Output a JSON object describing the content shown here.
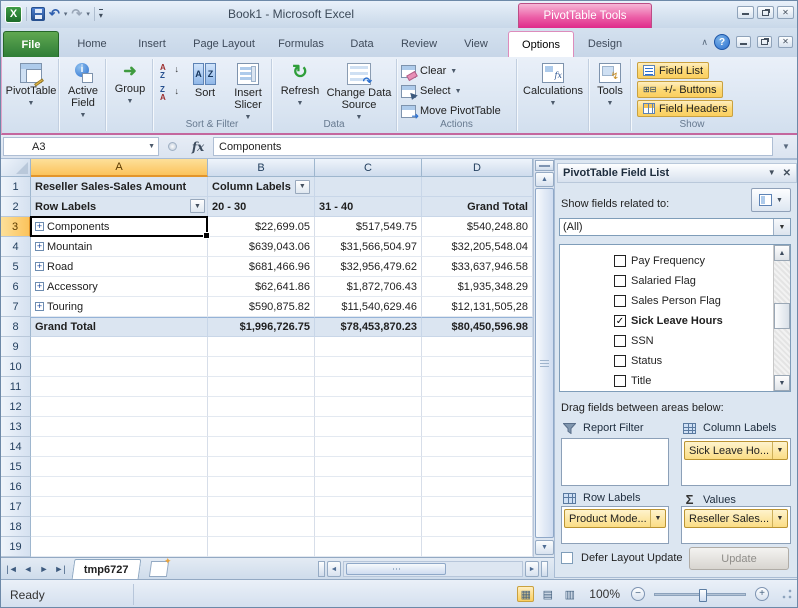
{
  "title_bar": {
    "title": "Book1  -  Microsoft Excel",
    "contextual_group": "PivotTable Tools"
  },
  "tabs": {
    "items": [
      "File",
      "Home",
      "Insert",
      "Page Layout",
      "Formulas",
      "Data",
      "Review",
      "View",
      "Options",
      "Design"
    ],
    "active": "Options"
  },
  "ribbon": {
    "pivottable": "PivotTable",
    "active_field": "Active Field",
    "group_btn": "Group",
    "sort": "Sort",
    "insert_slicer": "Insert Slicer",
    "sort_filter_group": "Sort & Filter",
    "refresh": "Refresh",
    "change_data_source": "Change Data Source",
    "data_group": "Data",
    "clear": "Clear",
    "select": "Select",
    "move_pivottable": "Move PivotTable",
    "actions_group": "Actions",
    "calculations": "Calculations",
    "tools": "Tools",
    "field_list": "Field List",
    "plus_minus_buttons": "+/- Buttons",
    "field_headers": "Field Headers",
    "show_group": "Show"
  },
  "formula_bar": {
    "name_box": "A3",
    "content": "Components"
  },
  "grid": {
    "column_headers": [
      "A",
      "B",
      "C",
      "D"
    ],
    "visible_rows": 19,
    "selected_cell": "A3",
    "pivot_rows": [
      {
        "n": 1,
        "type": "caption",
        "cells": [
          "Reseller Sales-Sales Amount",
          "Column Labels",
          "",
          ""
        ]
      },
      {
        "n": 2,
        "type": "labels",
        "cells": [
          "Row Labels",
          "20 - 30",
          "31 - 40",
          "Grand Total"
        ]
      },
      {
        "n": 3,
        "type": "item",
        "cells": [
          "Components",
          "$22,699.05",
          "$517,549.75",
          "$540,248.80"
        ]
      },
      {
        "n": 4,
        "type": "item",
        "cells": [
          "Mountain",
          "$639,043.06",
          "$31,566,504.97",
          "$32,205,548.04"
        ]
      },
      {
        "n": 5,
        "type": "item",
        "cells": [
          "Road",
          "$681,466.96",
          "$32,956,479.62",
          "$33,637,946.58"
        ]
      },
      {
        "n": 6,
        "type": "item",
        "cells": [
          "Accessory",
          "$62,641.86",
          "$1,872,706.43",
          "$1,935,348.29"
        ]
      },
      {
        "n": 7,
        "type": "item",
        "cells": [
          "Touring",
          "$590,875.82",
          "$11,540,629.46",
          "$12,131,505,28"
        ]
      },
      {
        "n": 8,
        "type": "total",
        "cells": [
          "Grand Total",
          "$1,996,726.75",
          "$78,453,870.23",
          "$80,450,596.98"
        ]
      }
    ]
  },
  "field_list_pane": {
    "title": "PivotTable Field List",
    "show_fields_label": "Show fields related to:",
    "table_filter_value": "(All)",
    "fields": [
      {
        "label": "Pay Frequency",
        "checked": false
      },
      {
        "label": "Salaried Flag",
        "checked": false
      },
      {
        "label": "Sales Person Flag",
        "checked": false
      },
      {
        "label": "Sick Leave Hours",
        "checked": true
      },
      {
        "label": "SSN",
        "checked": false
      },
      {
        "label": "Status",
        "checked": false
      },
      {
        "label": "Title",
        "checked": false
      }
    ],
    "drag_label": "Drag fields between areas below:",
    "areas": {
      "report_filter": {
        "label": "Report Filter",
        "items": []
      },
      "column_labels": {
        "label": "Column Labels",
        "items": [
          "Sick Leave Ho..."
        ]
      },
      "row_labels": {
        "label": "Row Labels",
        "items": [
          "Product Mode..."
        ]
      },
      "values": {
        "label": "Values",
        "items": [
          "Reseller Sales..."
        ]
      }
    },
    "defer_label": "Defer Layout Update",
    "update_button": "Update"
  },
  "sheet_tabs": {
    "active": "tmp6727"
  },
  "status_bar": {
    "mode": "Ready",
    "zoom_level": "100%"
  },
  "colors": {
    "accent_pink": "#df2a8a",
    "highlight_amber": "#fbcf5f",
    "pivot_blue": "#dbe5f1"
  }
}
